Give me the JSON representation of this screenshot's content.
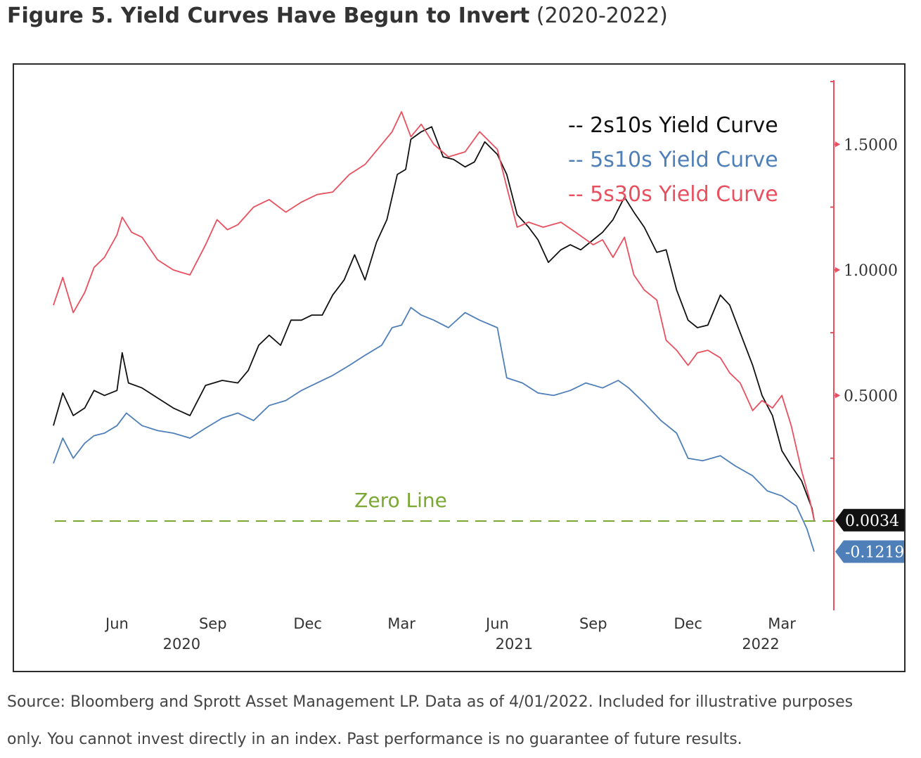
{
  "title": {
    "bold": "Figure 5. Yield Curves Have Begun to Invert",
    "normal": "(2020-2022)"
  },
  "source_note": {
    "line1": "Source: Bloomberg and Sprott Asset Management LP. Data as of 4/01/2022. Included for illustrative purposes",
    "line2": "only. You cannot invest directly in an index. Past performance is no guarantee of future results."
  },
  "chart_data": {
    "type": "line",
    "x_range": [
      "2020-04-01",
      "2022-04-01"
    ],
    "ylim": [
      -0.35,
      1.75
    ],
    "grid": false,
    "legend_position": "top-right",
    "legend_entries": [
      "-- 2s10s Yield Curve",
      "-- 5s10s Yield Curve",
      "-- 5s30s Yield Curve"
    ],
    "y_ticks": [
      "1.5000",
      "1.0000",
      "0.5000"
    ],
    "y_tick_values": [
      1.5,
      1.0,
      0.5
    ],
    "x_ticks": [
      {
        "date": "2020-06-01",
        "label": "Jun",
        "year": "2020"
      },
      {
        "date": "2020-09-01",
        "label": "Sep",
        "year": ""
      },
      {
        "date": "2020-12-01",
        "label": "Dec",
        "year": ""
      },
      {
        "date": "2021-03-01",
        "label": "Mar",
        "year": ""
      },
      {
        "date": "2021-06-01",
        "label": "Jun",
        "year": "2021"
      },
      {
        "date": "2021-09-01",
        "label": "Sep",
        "year": ""
      },
      {
        "date": "2021-12-01",
        "label": "Dec",
        "year": ""
      },
      {
        "date": "2022-03-01",
        "label": "Mar",
        "year": "2022"
      }
    ],
    "zero_line": {
      "label": "Zero Line",
      "value": 0,
      "color": "#7aa832"
    },
    "last_value_badges": [
      {
        "label": "0.0034",
        "value": 0.0034,
        "color": "#111111"
      },
      {
        "label": "-0.1219",
        "value": -0.1219,
        "color": "#4f7fb8"
      }
    ],
    "series": [
      {
        "color": "#111111",
        "points": [
          [
            "2020-04-01",
            0.38
          ],
          [
            "2020-04-10",
            0.51
          ],
          [
            "2020-04-20",
            0.42
          ],
          [
            "2020-05-01",
            0.45
          ],
          [
            "2020-05-10",
            0.52
          ],
          [
            "2020-05-20",
            0.5
          ],
          [
            "2020-06-01",
            0.52
          ],
          [
            "2020-06-06",
            0.67
          ],
          [
            "2020-06-12",
            0.55
          ],
          [
            "2020-06-25",
            0.53
          ],
          [
            "2020-07-10",
            0.49
          ],
          [
            "2020-07-25",
            0.45
          ],
          [
            "2020-08-10",
            0.42
          ],
          [
            "2020-08-25",
            0.54
          ],
          [
            "2020-09-10",
            0.56
          ],
          [
            "2020-09-25",
            0.55
          ],
          [
            "2020-10-05",
            0.6
          ],
          [
            "2020-10-15",
            0.7
          ],
          [
            "2020-10-25",
            0.74
          ],
          [
            "2020-11-05",
            0.7
          ],
          [
            "2020-11-15",
            0.8
          ],
          [
            "2020-11-25",
            0.8
          ],
          [
            "2020-12-05",
            0.82
          ],
          [
            "2020-12-15",
            0.82
          ],
          [
            "2020-12-25",
            0.9
          ],
          [
            "2021-01-05",
            0.96
          ],
          [
            "2021-01-15",
            1.06
          ],
          [
            "2021-01-25",
            0.96
          ],
          [
            "2021-02-05",
            1.11
          ],
          [
            "2021-02-15",
            1.2
          ],
          [
            "2021-02-25",
            1.38
          ],
          [
            "2021-03-05",
            1.4
          ],
          [
            "2021-03-10",
            1.52
          ],
          [
            "2021-03-20",
            1.55
          ],
          [
            "2021-03-30",
            1.57
          ],
          [
            "2021-04-10",
            1.45
          ],
          [
            "2021-04-20",
            1.44
          ],
          [
            "2021-05-01",
            1.41
          ],
          [
            "2021-05-10",
            1.43
          ],
          [
            "2021-05-20",
            1.51
          ],
          [
            "2021-06-01",
            1.46
          ],
          [
            "2021-06-10",
            1.38
          ],
          [
            "2021-06-20",
            1.22
          ],
          [
            "2021-07-01",
            1.17
          ],
          [
            "2021-07-10",
            1.12
          ],
          [
            "2021-07-20",
            1.03
          ],
          [
            "2021-08-01",
            1.08
          ],
          [
            "2021-08-10",
            1.1
          ],
          [
            "2021-08-20",
            1.08
          ],
          [
            "2021-09-01",
            1.12
          ],
          [
            "2021-09-10",
            1.15
          ],
          [
            "2021-09-20",
            1.2
          ],
          [
            "2021-10-01",
            1.29
          ],
          [
            "2021-10-10",
            1.23
          ],
          [
            "2021-10-20",
            1.17
          ],
          [
            "2021-11-01",
            1.07
          ],
          [
            "2021-11-10",
            1.08
          ],
          [
            "2021-11-20",
            0.92
          ],
          [
            "2021-12-01",
            0.8
          ],
          [
            "2021-12-10",
            0.77
          ],
          [
            "2021-12-20",
            0.78
          ],
          [
            "2022-01-01",
            0.9
          ],
          [
            "2022-01-10",
            0.86
          ],
          [
            "2022-01-20",
            0.75
          ],
          [
            "2022-02-01",
            0.62
          ],
          [
            "2022-02-10",
            0.5
          ],
          [
            "2022-02-20",
            0.42
          ],
          [
            "2022-03-01",
            0.28
          ],
          [
            "2022-03-10",
            0.22
          ],
          [
            "2022-03-20",
            0.16
          ],
          [
            "2022-03-30",
            0.05
          ],
          [
            "2022-04-01",
            0.0034
          ]
        ]
      },
      {
        "color": "#4f7fb8",
        "points": [
          [
            "2020-04-01",
            0.23
          ],
          [
            "2020-04-10",
            0.33
          ],
          [
            "2020-04-20",
            0.25
          ],
          [
            "2020-05-01",
            0.31
          ],
          [
            "2020-05-10",
            0.34
          ],
          [
            "2020-05-20",
            0.35
          ],
          [
            "2020-06-01",
            0.38
          ],
          [
            "2020-06-10",
            0.43
          ],
          [
            "2020-06-25",
            0.38
          ],
          [
            "2020-07-10",
            0.36
          ],
          [
            "2020-07-25",
            0.35
          ],
          [
            "2020-08-10",
            0.33
          ],
          [
            "2020-08-25",
            0.37
          ],
          [
            "2020-09-10",
            0.41
          ],
          [
            "2020-09-25",
            0.43
          ],
          [
            "2020-10-10",
            0.4
          ],
          [
            "2020-10-25",
            0.46
          ],
          [
            "2020-11-10",
            0.48
          ],
          [
            "2020-11-25",
            0.52
          ],
          [
            "2020-12-10",
            0.55
          ],
          [
            "2020-12-25",
            0.58
          ],
          [
            "2021-01-10",
            0.62
          ],
          [
            "2021-01-25",
            0.66
          ],
          [
            "2021-02-10",
            0.7
          ],
          [
            "2021-02-20",
            0.77
          ],
          [
            "2021-03-01",
            0.78
          ],
          [
            "2021-03-10",
            0.85
          ],
          [
            "2021-03-20",
            0.82
          ],
          [
            "2021-04-01",
            0.8
          ],
          [
            "2021-04-15",
            0.77
          ],
          [
            "2021-05-01",
            0.83
          ],
          [
            "2021-05-15",
            0.8
          ],
          [
            "2021-06-01",
            0.77
          ],
          [
            "2021-06-10",
            0.57
          ],
          [
            "2021-06-25",
            0.55
          ],
          [
            "2021-07-10",
            0.51
          ],
          [
            "2021-07-25",
            0.5
          ],
          [
            "2021-08-10",
            0.52
          ],
          [
            "2021-08-25",
            0.55
          ],
          [
            "2021-09-10",
            0.53
          ],
          [
            "2021-09-25",
            0.56
          ],
          [
            "2021-10-05",
            0.53
          ],
          [
            "2021-10-20",
            0.47
          ],
          [
            "2021-11-05",
            0.4
          ],
          [
            "2021-11-20",
            0.35
          ],
          [
            "2021-12-01",
            0.25
          ],
          [
            "2021-12-15",
            0.24
          ],
          [
            "2022-01-01",
            0.26
          ],
          [
            "2022-01-15",
            0.22
          ],
          [
            "2022-02-01",
            0.18
          ],
          [
            "2022-02-15",
            0.12
          ],
          [
            "2022-03-01",
            0.1
          ],
          [
            "2022-03-15",
            0.06
          ],
          [
            "2022-03-25",
            -0.03
          ],
          [
            "2022-04-01",
            -0.1219
          ]
        ]
      },
      {
        "color": "#e8505f",
        "points": [
          [
            "2020-04-01",
            0.86
          ],
          [
            "2020-04-10",
            0.97
          ],
          [
            "2020-04-20",
            0.83
          ],
          [
            "2020-05-01",
            0.91
          ],
          [
            "2020-05-10",
            1.01
          ],
          [
            "2020-05-20",
            1.05
          ],
          [
            "2020-06-01",
            1.14
          ],
          [
            "2020-06-06",
            1.21
          ],
          [
            "2020-06-15",
            1.15
          ],
          [
            "2020-06-25",
            1.13
          ],
          [
            "2020-07-10",
            1.04
          ],
          [
            "2020-07-25",
            1.0
          ],
          [
            "2020-08-10",
            0.98
          ],
          [
            "2020-08-25",
            1.1
          ],
          [
            "2020-09-05",
            1.2
          ],
          [
            "2020-09-15",
            1.16
          ],
          [
            "2020-09-25",
            1.18
          ],
          [
            "2020-10-10",
            1.25
          ],
          [
            "2020-10-25",
            1.28
          ],
          [
            "2020-11-10",
            1.23
          ],
          [
            "2020-11-25",
            1.27
          ],
          [
            "2020-12-10",
            1.3
          ],
          [
            "2020-12-25",
            1.31
          ],
          [
            "2021-01-10",
            1.38
          ],
          [
            "2021-01-25",
            1.42
          ],
          [
            "2021-02-10",
            1.5
          ],
          [
            "2021-02-20",
            1.55
          ],
          [
            "2021-03-01",
            1.63
          ],
          [
            "2021-03-10",
            1.53
          ],
          [
            "2021-03-20",
            1.58
          ],
          [
            "2021-04-01",
            1.5
          ],
          [
            "2021-04-15",
            1.45
          ],
          [
            "2021-05-01",
            1.47
          ],
          [
            "2021-05-15",
            1.55
          ],
          [
            "2021-06-01",
            1.48
          ],
          [
            "2021-06-10",
            1.33
          ],
          [
            "2021-06-20",
            1.17
          ],
          [
            "2021-07-01",
            1.19
          ],
          [
            "2021-07-15",
            1.17
          ],
          [
            "2021-08-01",
            1.19
          ],
          [
            "2021-08-15",
            1.15
          ],
          [
            "2021-09-01",
            1.1
          ],
          [
            "2021-09-10",
            1.12
          ],
          [
            "2021-09-20",
            1.05
          ],
          [
            "2021-10-01",
            1.13
          ],
          [
            "2021-10-10",
            0.98
          ],
          [
            "2021-10-20",
            0.92
          ],
          [
            "2021-11-01",
            0.88
          ],
          [
            "2021-11-10",
            0.72
          ],
          [
            "2021-11-20",
            0.68
          ],
          [
            "2021-12-01",
            0.62
          ],
          [
            "2021-12-10",
            0.67
          ],
          [
            "2021-12-20",
            0.68
          ],
          [
            "2022-01-01",
            0.65
          ],
          [
            "2022-01-10",
            0.59
          ],
          [
            "2022-01-20",
            0.55
          ],
          [
            "2022-02-01",
            0.44
          ],
          [
            "2022-02-10",
            0.48
          ],
          [
            "2022-02-20",
            0.45
          ],
          [
            "2022-03-01",
            0.5
          ],
          [
            "2022-03-10",
            0.38
          ],
          [
            "2022-03-20",
            0.2
          ],
          [
            "2022-03-28",
            0.08
          ],
          [
            "2022-04-01",
            0.0034
          ]
        ]
      }
    ]
  }
}
